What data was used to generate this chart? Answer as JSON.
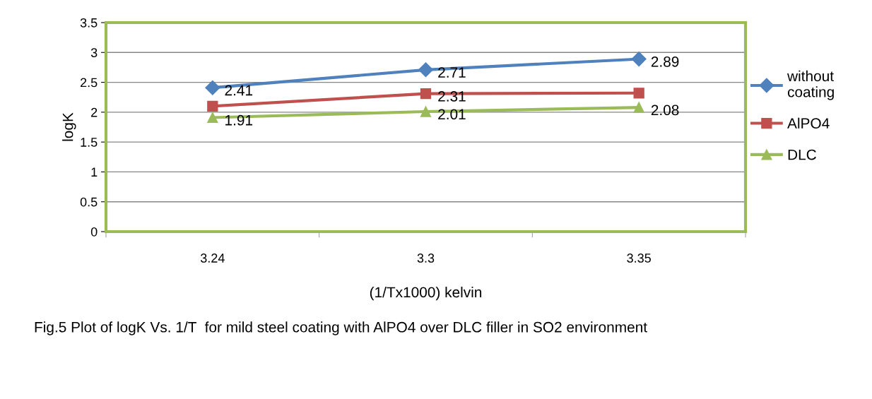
{
  "chart_data": {
    "type": "line",
    "xlabel": "(1/Tx1000) kelvin",
    "ylabel": "logK",
    "categories": [
      "3.24",
      "3.3",
      "3.35"
    ],
    "series": [
      {
        "name": "without coating",
        "color": "#4f81bd",
        "marker": "diamond",
        "values": [
          2.41,
          2.71,
          2.89
        ],
        "value_labels": [
          "2.41",
          "2.71",
          "2.89"
        ]
      },
      {
        "name": "AlPO4",
        "color": "#c0504d",
        "marker": "square",
        "values": [
          2.1,
          2.31,
          2.32
        ],
        "value_labels": [
          null,
          "2.31",
          null
        ]
      },
      {
        "name": "DLC",
        "color": "#9bbb59",
        "marker": "triangle",
        "values": [
          1.91,
          2.01,
          2.08
        ],
        "value_labels": [
          "1.91",
          "2.01",
          "2.08"
        ]
      }
    ],
    "ylim": [
      0,
      3.5
    ],
    "yticks": [
      0,
      0.5,
      1,
      1.5,
      2,
      2.5,
      3,
      3.5
    ],
    "grid": "y",
    "legend": "right",
    "annotations": [
      "Fig.5 Plot of logK Vs. 1/T  for mild steel coating with AlPO4 over DLC filler in SO2 environment"
    ]
  }
}
